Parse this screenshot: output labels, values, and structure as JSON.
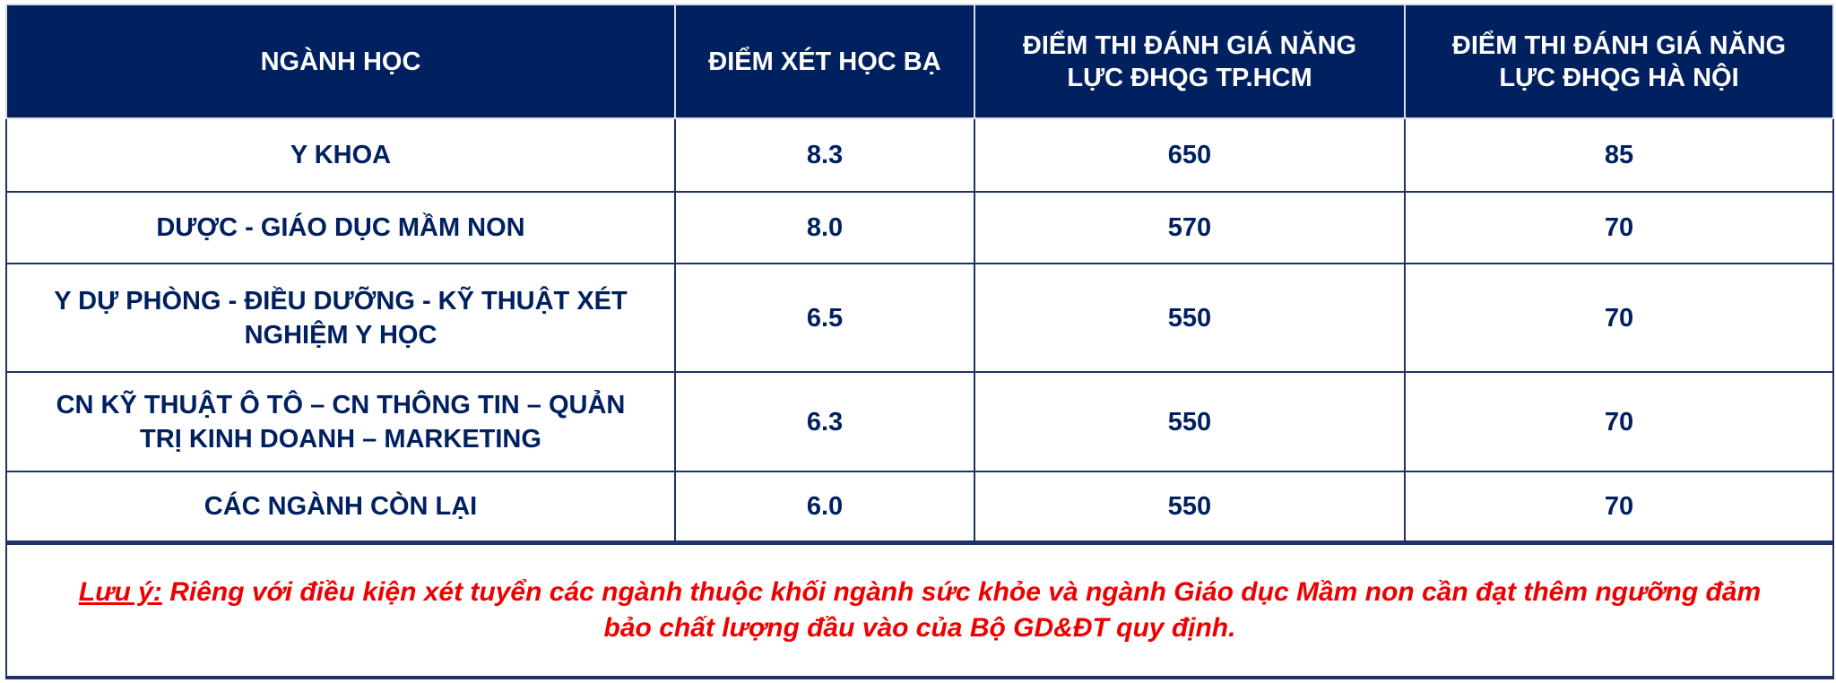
{
  "headers": [
    "NGÀNH HỌC",
    "ĐIỂM XÉT HỌC BẠ",
    "ĐIỂM THI ĐÁNH GIÁ NĂNG LỰC ĐHQG TP.HCM",
    "ĐIỂM THI ĐÁNH GIÁ NĂNG LỰC ĐHQG HÀ NỘI"
  ],
  "rows": [
    {
      "major": "Y KHOA",
      "hocba": "8.3",
      "hcm": "650",
      "hn": "85"
    },
    {
      "major": "DƯỢC - GIÁO DỤC MẦM NON",
      "hocba": "8.0",
      "hcm": "570",
      "hn": "70"
    },
    {
      "major": "Y DỰ PHÒNG - ĐIỀU DƯỠNG - KỸ THUẬT XÉT NGHIỆM Y HỌC",
      "hocba": "6.5",
      "hcm": "550",
      "hn": "70"
    },
    {
      "major": "CN KỸ THUẬT Ô TÔ – CN THÔNG TIN – QUẢN TRỊ KINH DOANH – MARKETING",
      "hocba": "6.3",
      "hcm": "550",
      "hn": "70"
    },
    {
      "major": "CÁC NGÀNH CÒN LẠI",
      "hocba": "6.0",
      "hcm": "550",
      "hn": "70"
    }
  ],
  "note": {
    "label": "Lưu ý:",
    "text": " Riêng với điều kiện xét tuyển các ngành thuộc khối ngành sức khỏe và ngành Giáo dục Mầm non cần đạt thêm ngưỡng đảm bảo chất lượng đầu vào của Bộ GD&ĐT quy định."
  },
  "colors": {
    "header_bg": "#002060",
    "text": "#002060",
    "note": "#ee0000"
  }
}
